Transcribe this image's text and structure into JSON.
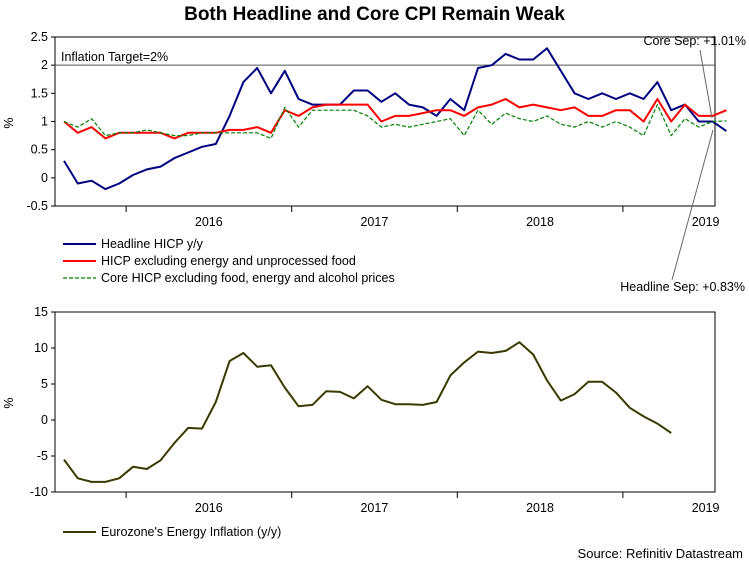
{
  "title": "Both Headline and Core CPI Remain Weak",
  "source": "Source: Refinitiv Datastream",
  "chart_data": [
    {
      "type": "line",
      "ylabel": "%",
      "ylim": [
        -0.5,
        2.5
      ],
      "yticks": [
        "2.5",
        "2",
        "1.5",
        "1",
        "0.5",
        "0",
        "-0.5"
      ],
      "ytick_values": [
        2.5,
        2,
        1.5,
        1,
        0.5,
        0,
        -0.5
      ],
      "xtick_labels": [
        "2016",
        "2017",
        "2018",
        "2019"
      ],
      "x_start": "2015-08",
      "reference_line": {
        "value": 2,
        "label": "Inflation Target=2%"
      },
      "annotations": [
        "Core Sep: +1.01%",
        "Headline Sep: +0.83%"
      ],
      "legend_position": "bottom-left",
      "colors": {
        "headline": "#000080",
        "excl_energy": "#ff0000",
        "core": "#008000"
      },
      "series": [
        {
          "name": "Headline HICP y/y",
          "style": "solid",
          "values": [
            0.3,
            -0.1,
            -0.05,
            -0.2,
            -0.1,
            0.05,
            0.15,
            0.2,
            0.35,
            0.45,
            0.55,
            0.6,
            1.1,
            1.7,
            1.95,
            1.5,
            1.9,
            1.4,
            1.3,
            1.3,
            1.3,
            1.55,
            1.55,
            1.35,
            1.5,
            1.3,
            1.25,
            1.1,
            1.4,
            1.2,
            1.95,
            2.0,
            2.2,
            2.1,
            2.1,
            2.3,
            1.9,
            1.5,
            1.4,
            1.5,
            1.4,
            1.5,
            1.4,
            1.7,
            1.2,
            1.3,
            1.0,
            1.0,
            0.83
          ]
        },
        {
          "name": "HICP excluding energy and unprocessed food",
          "style": "solid",
          "values": [
            1.0,
            0.8,
            0.9,
            0.7,
            0.8,
            0.8,
            0.8,
            0.8,
            0.7,
            0.8,
            0.8,
            0.8,
            0.85,
            0.85,
            0.9,
            0.8,
            1.2,
            1.1,
            1.25,
            1.3,
            1.3,
            1.3,
            1.3,
            1.0,
            1.1,
            1.1,
            1.15,
            1.2,
            1.2,
            1.1,
            1.25,
            1.3,
            1.4,
            1.25,
            1.3,
            1.25,
            1.2,
            1.25,
            1.1,
            1.1,
            1.2,
            1.2,
            1.0,
            1.4,
            1.0,
            1.3,
            1.1,
            1.1,
            1.2
          ]
        },
        {
          "name": "Core HICP excluding food, energy and alcohol prices",
          "style": "dashed",
          "values": [
            1.0,
            0.9,
            1.05,
            0.75,
            0.8,
            0.8,
            0.85,
            0.8,
            0.75,
            0.75,
            0.8,
            0.8,
            0.8,
            0.8,
            0.8,
            0.7,
            1.25,
            0.9,
            1.2,
            1.2,
            1.2,
            1.2,
            1.1,
            0.9,
            0.95,
            0.9,
            0.95,
            1.0,
            1.05,
            0.75,
            1.2,
            0.95,
            1.15,
            1.05,
            1.0,
            1.1,
            0.95,
            0.9,
            1.0,
            0.9,
            1.0,
            0.9,
            0.75,
            1.3,
            0.75,
            1.05,
            0.9,
            1.0,
            1.01
          ]
        }
      ]
    },
    {
      "type": "line",
      "ylabel": "%",
      "ylim": [
        -10,
        15
      ],
      "yticks": [
        "15",
        "10",
        "5",
        "0",
        "-5",
        "-10"
      ],
      "ytick_values": [
        15,
        10,
        5,
        0,
        -5,
        -10
      ],
      "xtick_labels": [
        "2016",
        "2017",
        "2018",
        "2019"
      ],
      "x_start": "2015-08",
      "legend_position": "bottom-left",
      "colors": {
        "energy": "#3a3a00"
      },
      "series": [
        {
          "name": "Eurozone's Energy Inflation (y/y)",
          "style": "solid",
          "values": [
            -5.5,
            -8.1,
            -8.6,
            -8.6,
            -8.1,
            -6.5,
            -6.8,
            -5.6,
            -3.2,
            -1.1,
            -1.2,
            2.5,
            8.2,
            9.3,
            7.4,
            7.6,
            4.5,
            1.9,
            2.1,
            4.0,
            3.9,
            3.0,
            4.7,
            2.8,
            2.2,
            2.2,
            2.1,
            2.5,
            6.2,
            8.0,
            9.5,
            9.3,
            9.6,
            10.8,
            9.1,
            5.5,
            2.7,
            3.6,
            5.3,
            5.3,
            3.8,
            1.7,
            0.5,
            -0.5,
            -1.8
          ]
        }
      ]
    }
  ]
}
